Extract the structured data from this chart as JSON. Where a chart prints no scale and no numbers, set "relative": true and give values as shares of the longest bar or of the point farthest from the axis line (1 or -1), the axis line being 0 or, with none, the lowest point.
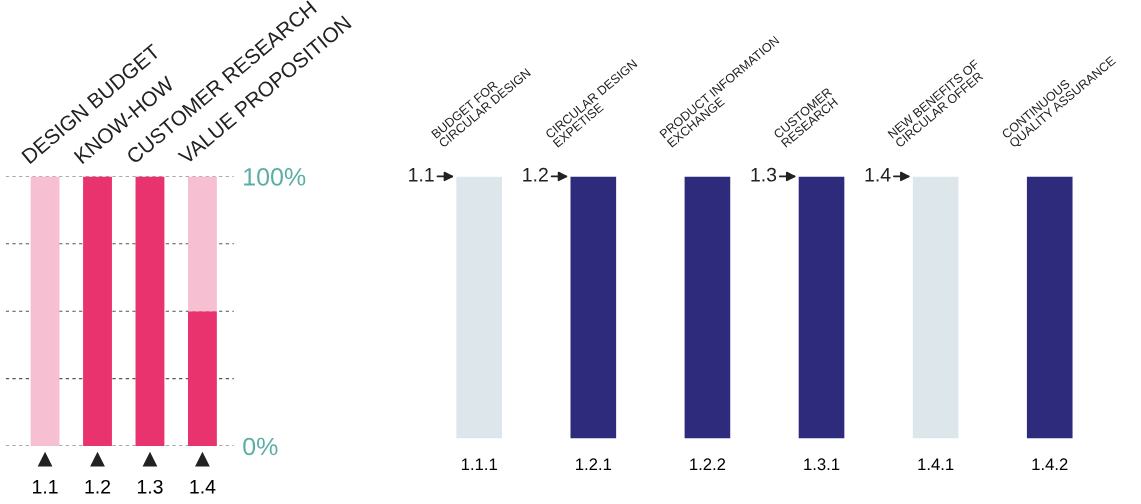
{
  "chart_data": [
    {
      "type": "bar",
      "stacked": true,
      "categories": [
        "1.1",
        "1.2",
        "1.3",
        "1.4"
      ],
      "series": [
        {
          "color": "#e8336e",
          "values": [
            0,
            100,
            100,
            50
          ]
        },
        {
          "color": "#f6bfd2",
          "values": [
            100,
            0,
            0,
            50
          ]
        }
      ],
      "ylim": [
        0,
        100
      ],
      "yticks": [
        {
          "value": 0,
          "label": "0%"
        },
        {
          "value": 25,
          "label": null
        },
        {
          "value": 50,
          "label": null
        },
        {
          "value": 75,
          "label": null
        },
        {
          "value": 100,
          "label": "100%"
        }
      ],
      "grid": "y",
      "line_style": "dashed",
      "annotations": [
        "DESIGN BUDGET",
        "KNOW-HOW",
        "CUSTOMER RESEARCH",
        "VALUE PROPOSITION"
      ]
    },
    {
      "type": "bar",
      "stacked": true,
      "relative": true,
      "categories": [
        "1.1.1",
        "1.2.1",
        "1.2.2",
        "1.3.1",
        "1.4.1",
        "1.4.2"
      ],
      "series": [
        {
          "color": "#2e2a7c",
          "values": [
            0,
            1,
            1,
            1,
            0,
            1
          ]
        },
        {
          "color": "#dde6ea",
          "values": [
            1,
            0,
            0,
            0,
            1,
            0
          ]
        }
      ],
      "annotations": [
        "BUDGET FOR\nCIRCULAR DESIGN",
        "CIRCULAR DESIGN\nEXPETISE",
        "PRODUCT INFORMATION\nEXCHANGE",
        "CUSTOMER\nRESEARCH",
        "NEW BENEFITS OF\nCIRCULAR OFFER",
        "CONTINUOUS\nQUALITY ASSURANCE",
        {
          "text": "1.1",
          "x": "1.1.1",
          "y": 1
        },
        {
          "text": "1.2",
          "x": "1.2.1",
          "y": 1
        },
        {
          "text": "1.3",
          "x": "1.3.1",
          "y": 1
        },
        {
          "text": "1.4",
          "x": "1.4.1",
          "y": 1
        }
      ]
    }
  ]
}
